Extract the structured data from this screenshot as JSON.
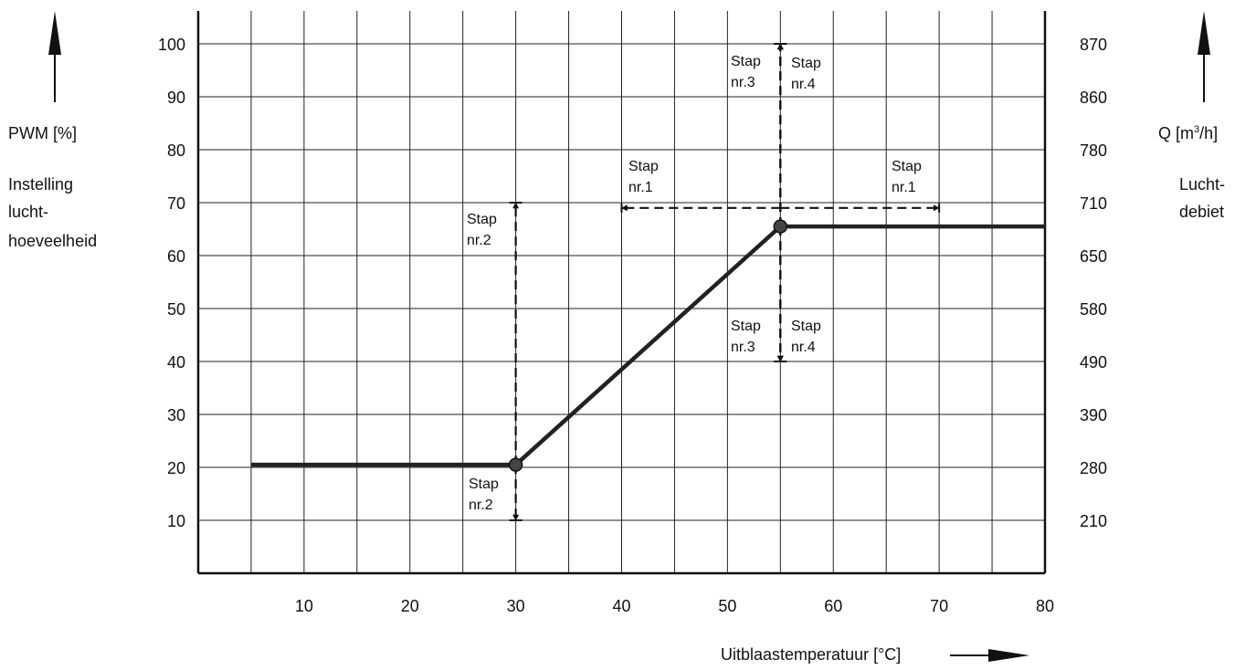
{
  "chart_data": {
    "type": "line",
    "xlabel": "Uitblaastemperatuur [°C]",
    "ylabel_left": {
      "title": "PWM [%]",
      "lines": [
        "Instelling",
        "lucht-",
        "hoeveelheid"
      ]
    },
    "ylabel_right": {
      "title_base": "Q [m",
      "title_sup": "3",
      "title_tail": "/h]",
      "lines": [
        "Lucht-",
        "debiet"
      ]
    },
    "xlim": [
      0,
      80
    ],
    "ylim": [
      0,
      100
    ],
    "x_ticks": [
      10,
      20,
      30,
      40,
      50,
      60,
      70,
      80
    ],
    "y_ticks": [
      10,
      20,
      30,
      40,
      50,
      60,
      70,
      80,
      90,
      100
    ],
    "right_tick_labels": [
      "210",
      "280",
      "390",
      "490",
      "580",
      "650",
      "710",
      "780",
      "860",
      "870"
    ],
    "grid": true,
    "series": [
      {
        "x": [
          5,
          30,
          55,
          80
        ],
        "y": [
          20.5,
          20.5,
          65.5,
          65.5
        ]
      }
    ],
    "key_points": [
      {
        "x": 30,
        "y": 20.5
      },
      {
        "x": 55,
        "y": 65.5
      }
    ],
    "adjustments": [
      {
        "label": "Stap\nnr.1",
        "orientation": "horizontal",
        "y": 69,
        "from": 55,
        "to": 40
      },
      {
        "label": "Stap\nnr.1",
        "orientation": "horizontal",
        "y": 69,
        "from": 55,
        "to": 70
      },
      {
        "label": "Stap\nnr.2",
        "orientation": "vertical",
        "x": 30,
        "from": 20.5,
        "to": 70
      },
      {
        "label": "Stap\nnr.2",
        "orientation": "vertical",
        "x": 30,
        "from": 20.5,
        "to": 10
      },
      {
        "label": "Stap\nnr.3",
        "orientation": "vertical",
        "x": 55,
        "from": 65.5,
        "to": 100
      },
      {
        "label": "Stap\nnr.4",
        "orientation": "vertical",
        "x": 55,
        "from": 65.5,
        "to": 100
      },
      {
        "label": "Stap\nnr.3",
        "orientation": "vertical",
        "x": 55,
        "from": 65.5,
        "to": 40
      },
      {
        "label": "Stap\nnr.4",
        "orientation": "vertical",
        "x": 55,
        "from": 65.5,
        "to": 40
      }
    ]
  }
}
